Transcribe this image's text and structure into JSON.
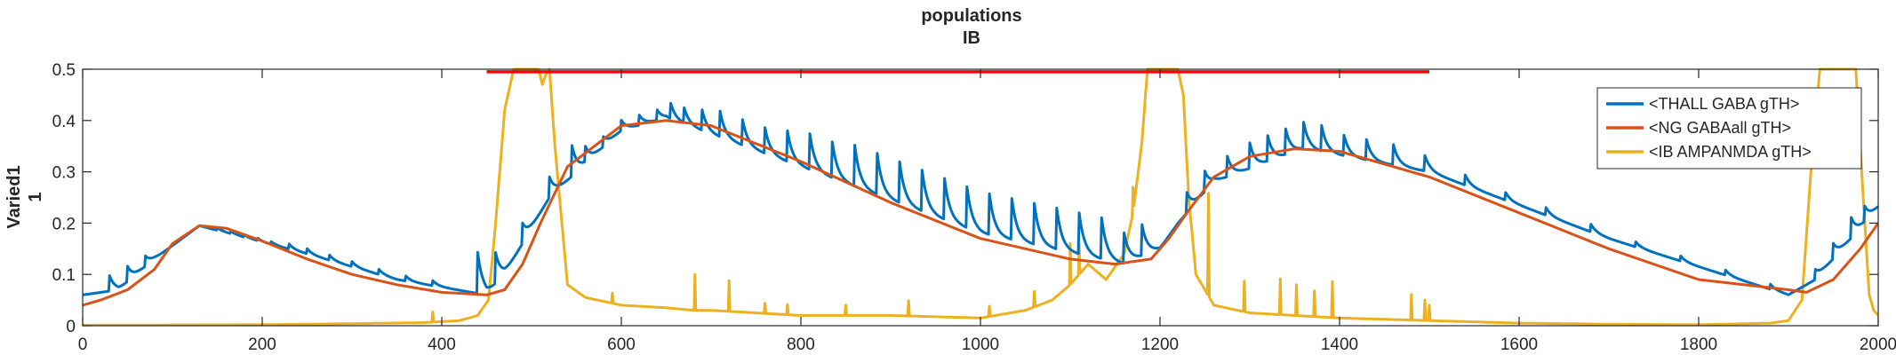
{
  "colors": {
    "thall": "#0072BD",
    "ng": "#D95319",
    "ib": "#EDB120",
    "threshold": "#FF0000",
    "axis": "#262626",
    "background": "#FFFFFF"
  },
  "chart_data": {
    "type": "line",
    "title": "populations",
    "subtitle": "IB",
    "ylabel_line1": "Varied1",
    "ylabel_line2": "1",
    "xlabel": "",
    "xlim": [
      0,
      2000
    ],
    "ylim": [
      0,
      0.5
    ],
    "xticks": [
      0,
      200,
      400,
      600,
      800,
      1000,
      1200,
      1400,
      1600,
      1800,
      2000
    ],
    "xtick_labels": [
      "0",
      "200",
      "400",
      "600",
      "800",
      "1000",
      "1200",
      "1400",
      "1600",
      "1800",
      "2000"
    ],
    "yticks": [
      0,
      0.1,
      0.2,
      0.3,
      0.4,
      0.5
    ],
    "ytick_labels": [
      "0",
      "0.1",
      "0.2",
      "0.3",
      "0.4",
      "0.5"
    ],
    "grid": false,
    "legend_position": "top-right",
    "series": [
      {
        "name": "<THALL GABA gTH>",
        "color_key": "thall",
        "baseline_x": [
          0,
          40,
          80,
          130,
          250,
          350,
          450,
          470,
          520,
          600,
          650,
          800,
          1000,
          1160,
          1200,
          1220,
          1260,
          1360,
          1500,
          1700,
          1900,
          1930,
          2000
        ],
        "baseline_y": [
          0.06,
          0.07,
          0.13,
          0.195,
          0.14,
          0.09,
          0.06,
          0.1,
          0.25,
          0.38,
          0.405,
          0.31,
          0.18,
          0.12,
          0.15,
          0.2,
          0.28,
          0.345,
          0.3,
          0.17,
          0.06,
          0.09,
          0.23
        ],
        "spike_x": [
          30,
          50,
          70,
          150,
          165,
          180,
          195,
          210,
          230,
          250,
          275,
          300,
          330,
          360,
          390,
          440,
          460,
          490,
          520,
          545,
          560,
          580,
          600,
          620,
          640,
          655,
          670,
          690,
          710,
          735,
          760,
          785,
          810,
          835,
          860,
          885,
          910,
          935,
          960,
          985,
          1010,
          1035,
          1060,
          1085,
          1110,
          1135,
          1160,
          1180,
          1230,
          1250,
          1275,
          1300,
          1320,
          1340,
          1360,
          1380,
          1405,
          1430,
          1460,
          1495,
          1540,
          1585,
          1630,
          1680,
          1730,
          1780,
          1830,
          1880,
          1930,
          1950,
          1970,
          1985
        ],
        "spike_amp": [
          0.03,
          0.03,
          0.02,
          0.005,
          0.005,
          0.005,
          0.005,
          0.005,
          0.01,
          0.01,
          0.01,
          0.01,
          0.01,
          0.01,
          0.01,
          0.08,
          0.06,
          0.04,
          0.04,
          0.06,
          0.03,
          0.02,
          0.02,
          0.02,
          0.02,
          0.03,
          0.03,
          0.04,
          0.05,
          0.05,
          0.05,
          0.06,
          0.07,
          0.07,
          0.08,
          0.08,
          0.08,
          0.08,
          0.08,
          0.08,
          0.08,
          0.08,
          0.08,
          0.08,
          0.08,
          0.08,
          0.06,
          0.06,
          0.04,
          0.04,
          0.04,
          0.05,
          0.05,
          0.05,
          0.05,
          0.05,
          0.04,
          0.04,
          0.04,
          0.03,
          0.02,
          0.015,
          0.015,
          0.015,
          0.01,
          0.01,
          0.01,
          0.01,
          0.02,
          0.03,
          0.04,
          0.03
        ]
      },
      {
        "name": "<NG GABAall gTH>",
        "color_key": "ng",
        "x": [
          0,
          20,
          50,
          80,
          100,
          130,
          160,
          200,
          250,
          300,
          350,
          400,
          450,
          470,
          490,
          510,
          540,
          600,
          650,
          700,
          800,
          900,
          1000,
          1100,
          1150,
          1190,
          1210,
          1230,
          1260,
          1300,
          1350,
          1400,
          1500,
          1600,
          1700,
          1800,
          1900,
          1920,
          1950,
          1980,
          2000
        ],
        "y": [
          0.04,
          0.05,
          0.07,
          0.11,
          0.16,
          0.195,
          0.19,
          0.165,
          0.13,
          0.1,
          0.08,
          0.065,
          0.06,
          0.07,
          0.12,
          0.2,
          0.31,
          0.39,
          0.4,
          0.39,
          0.32,
          0.24,
          0.17,
          0.13,
          0.12,
          0.13,
          0.17,
          0.22,
          0.29,
          0.33,
          0.345,
          0.34,
          0.29,
          0.22,
          0.15,
          0.09,
          0.07,
          0.065,
          0.09,
          0.15,
          0.2
        ]
      },
      {
        "name": "<IB AMPANMDA gTH>",
        "color_key": "ib",
        "x": [
          0,
          200,
          300,
          380,
          420,
          440,
          452,
          460,
          470,
          480,
          490,
          500,
          508,
          512,
          516,
          520,
          526,
          540,
          560,
          600,
          650,
          680,
          700,
          800,
          900,
          1000,
          1050,
          1080,
          1100,
          1120,
          1140,
          1160,
          1170,
          1180,
          1186,
          1190,
          1200,
          1210,
          1220,
          1226,
          1232,
          1240,
          1260,
          1300,
          1400,
          1500,
          1600,
          1700,
          1800,
          1880,
          1900,
          1915,
          1925,
          1935,
          1945,
          1955,
          1965,
          1975,
          1985,
          1990,
          1995,
          2000
        ],
        "y": [
          0.001,
          0.002,
          0.004,
          0.006,
          0.01,
          0.02,
          0.05,
          0.2,
          0.42,
          0.5,
          0.5,
          0.5,
          0.5,
          0.47,
          0.49,
          0.5,
          0.35,
          0.08,
          0.055,
          0.04,
          0.035,
          0.03,
          0.03,
          0.02,
          0.02,
          0.015,
          0.03,
          0.05,
          0.08,
          0.12,
          0.09,
          0.14,
          0.22,
          0.36,
          0.5,
          0.5,
          0.5,
          0.5,
          0.5,
          0.45,
          0.25,
          0.1,
          0.04,
          0.025,
          0.015,
          0.01,
          0.005,
          0.003,
          0.002,
          0.005,
          0.01,
          0.05,
          0.3,
          0.5,
          0.5,
          0.5,
          0.5,
          0.5,
          0.2,
          0.06,
          0.03,
          0.02
        ],
        "spike_x": [
          390,
          590,
          682,
          720,
          760,
          785,
          850,
          920,
          1010,
          1060,
          1100,
          1110,
          1170,
          1254,
          1294,
          1334,
          1352,
          1372,
          1392,
          1480,
          1495,
          1500
        ],
        "spike_amp": [
          0.02,
          0.02,
          0.07,
          0.06,
          0.02,
          0.02,
          0.02,
          0.03,
          0.02,
          0.03,
          0.08,
          0.06,
          0.05,
          0.2,
          0.06,
          0.07,
          0.06,
          0.05,
          0.07,
          0.05,
          0.04,
          0.03
        ]
      },
      {
        "name": "",
        "color_key": "threshold",
        "x": [
          450,
          1500
        ],
        "y": [
          0.495,
          0.495
        ]
      }
    ]
  }
}
